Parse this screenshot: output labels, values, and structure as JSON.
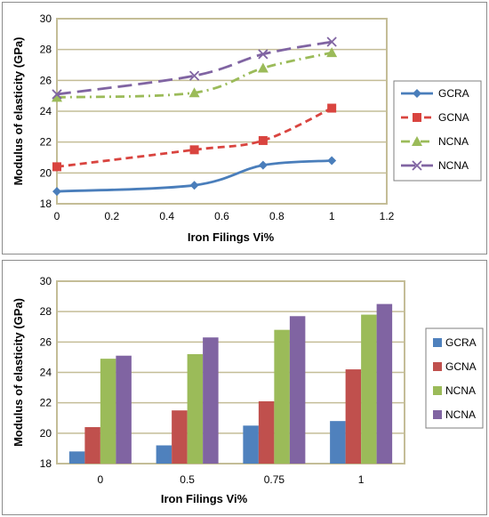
{
  "chart_data": [
    {
      "type": "line",
      "xlabel": "Iron Filings  Vi%",
      "ylabel": "Modulus of elasticity (GPa)",
      "xlim": [
        0,
        1.2
      ],
      "ylim": [
        18,
        30
      ],
      "xticks": [
        "0",
        "0.2",
        "0.4",
        "0.6",
        "0.8",
        "1",
        "1.2"
      ],
      "yticks": [
        "18",
        "20",
        "22",
        "24",
        "26",
        "28",
        "30"
      ],
      "x": [
        0,
        0.5,
        0.75,
        1
      ],
      "grid": true,
      "legend": "right",
      "series": [
        {
          "name": "GCRA",
          "values": [
            18.8,
            19.2,
            20.5,
            20.8
          ],
          "color": "#4a7ebb",
          "marker": "diamond",
          "dash": "solid"
        },
        {
          "name": "GCNA",
          "values": [
            20.4,
            21.5,
            22.1,
            24.2
          ],
          "color": "#d9443f",
          "marker": "square",
          "dash": "dashed"
        },
        {
          "name": "NCNA",
          "values": [
            24.9,
            25.2,
            26.8,
            27.8
          ],
          "color": "#9bbb59",
          "marker": "triangle",
          "dash": "dashdot"
        },
        {
          "name": "NCNA",
          "values": [
            25.1,
            26.3,
            27.7,
            28.5
          ],
          "color": "#8064a2",
          "marker": "x",
          "dash": "longdash"
        }
      ]
    },
    {
      "type": "bar",
      "xlabel": "Iron Filings  Vi%",
      "ylabel": "Modulus of elasticity (GPa)",
      "ylim": [
        18,
        30
      ],
      "yticks": [
        "18",
        "20",
        "22",
        "24",
        "26",
        "28",
        "30"
      ],
      "categories": [
        "0",
        "0.5",
        "0.75",
        "1"
      ],
      "grid": true,
      "legend": "right",
      "series": [
        {
          "name": "GCRA",
          "values": [
            18.8,
            19.2,
            20.5,
            20.8
          ],
          "color": "#4f81bd"
        },
        {
          "name": "GCNA",
          "values": [
            20.4,
            21.5,
            22.1,
            24.2
          ],
          "color": "#c0504d"
        },
        {
          "name": "NCNA",
          "values": [
            24.9,
            25.2,
            26.8,
            27.8
          ],
          "color": "#9bbb59"
        },
        {
          "name": "NCNA",
          "values": [
            25.1,
            26.3,
            27.7,
            28.5
          ],
          "color": "#8064a2"
        }
      ]
    }
  ]
}
